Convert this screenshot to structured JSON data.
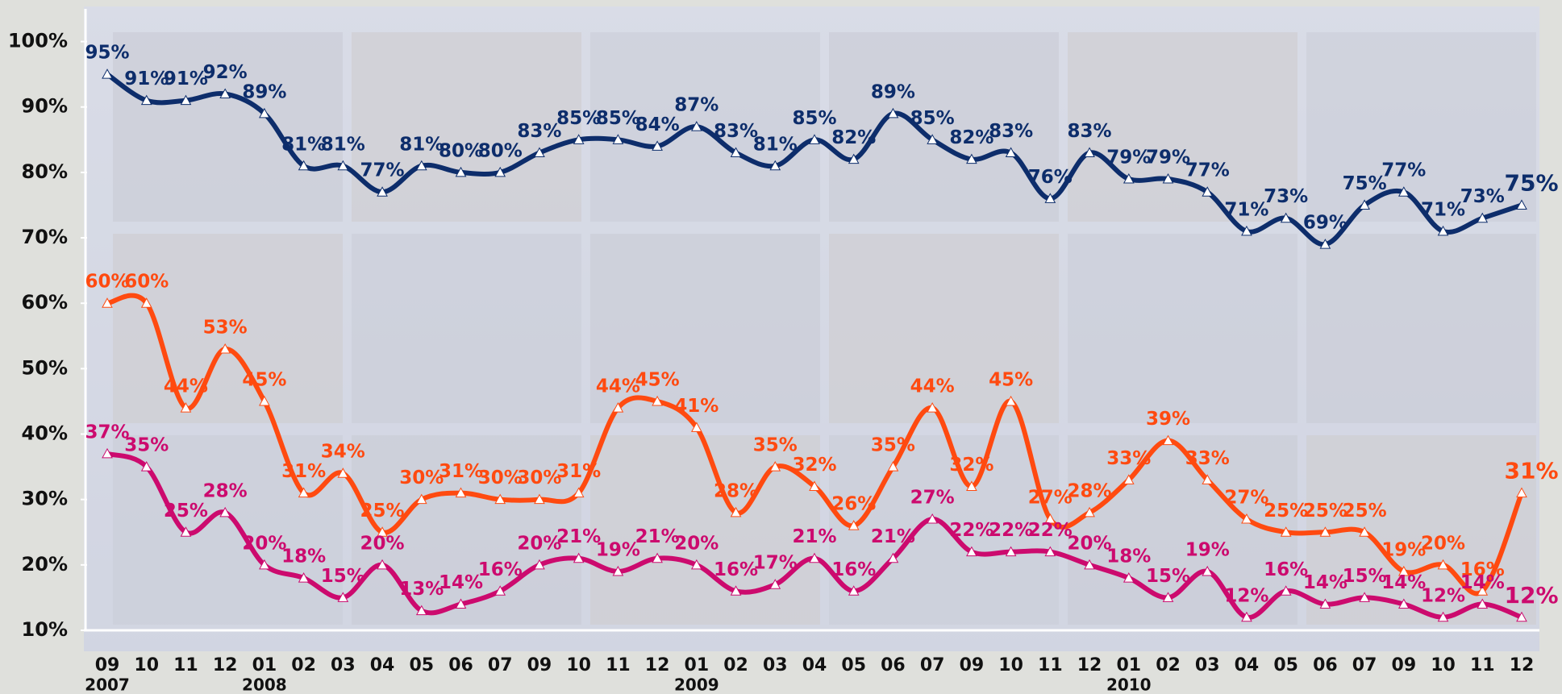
{
  "chart_data": {
    "type": "line",
    "categories": [
      "09",
      "10",
      "11",
      "12",
      "01",
      "02",
      "03",
      "04",
      "05",
      "06",
      "07",
      "09",
      "10",
      "11",
      "12",
      "01",
      "02",
      "03",
      "04",
      "05",
      "06",
      "07",
      "09",
      "10",
      "11",
      "12",
      "01",
      "02",
      "03",
      "04",
      "05",
      "06",
      "07",
      "09",
      "10",
      "11",
      "12"
    ],
    "years": [
      "2007",
      null,
      null,
      null,
      "2008",
      null,
      null,
      null,
      null,
      null,
      null,
      null,
      null,
      null,
      null,
      "2009",
      null,
      null,
      null,
      null,
      null,
      null,
      null,
      null,
      null,
      null,
      "2010",
      null,
      null,
      null,
      null,
      null,
      null,
      null,
      null,
      null,
      null
    ],
    "series": [
      {
        "color": "#0d2d6b",
        "values": [
          95,
          91,
          91,
          92,
          89,
          81,
          81,
          77,
          81,
          80,
          80,
          83,
          85,
          85,
          84,
          87,
          83,
          81,
          85,
          82,
          89,
          85,
          82,
          83,
          76,
          83,
          79,
          79,
          77,
          71,
          73,
          69,
          75,
          77,
          71,
          73,
          75
        ],
        "value_labels": [
          "95%",
          "91%",
          "91%",
          "92%",
          "89%",
          "81%",
          "81%",
          "77%",
          "81%",
          "80%",
          "80%",
          "83%",
          "85%",
          "85%",
          "84%",
          "87%",
          "83%",
          "81%",
          "85%",
          "82%",
          "89%",
          "85%",
          "82%",
          "83%",
          "76%",
          "83%",
          "79%",
          "79%",
          "77%",
          "71%",
          "73%",
          "69%",
          "75%",
          "77%",
          "71%",
          "73%",
          "75%"
        ]
      },
      {
        "color": "#ff4a10",
        "values": [
          60,
          60,
          44,
          53,
          45,
          31,
          34,
          25,
          30,
          31,
          30,
          30,
          31,
          44,
          45,
          41,
          28,
          35,
          32,
          26,
          35,
          44,
          32,
          45,
          27,
          28,
          33,
          39,
          33,
          27,
          25,
          25,
          25,
          19,
          20,
          16,
          31
        ],
        "value_labels": [
          "60%",
          "60%",
          "44%",
          "53%",
          "45%",
          "31%",
          "34%",
          "25%",
          "30%",
          "31%",
          "30%",
          "30%",
          "31%",
          "44%",
          "45%",
          "41%",
          "28%",
          "35%",
          "32%",
          "26%",
          "35%",
          "44%",
          "32%",
          "45%",
          "27%",
          "28%",
          "33%",
          "39%",
          "33%",
          "27%",
          "25%",
          "25%",
          "25%",
          "19%",
          "20%",
          "16%",
          "31%"
        ]
      },
      {
        "color": "#cc0a6e",
        "values": [
          37,
          35,
          25,
          28,
          20,
          18,
          15,
          20,
          13,
          14,
          16,
          20,
          21,
          19,
          21,
          20,
          16,
          17,
          21,
          16,
          21,
          27,
          22,
          22,
          22,
          20,
          18,
          15,
          19,
          12,
          16,
          14,
          15,
          14,
          12,
          14,
          12
        ],
        "value_labels": [
          "37%",
          "35%",
          "25%",
          "28%",
          "20%",
          "18%",
          "15%",
          "20%",
          "13%",
          "14%",
          "16%",
          "20%",
          "21%",
          "19%",
          "21%",
          "20%",
          "16%",
          "17%",
          "21%",
          "16%",
          "21%",
          "27%",
          "22%",
          "22%",
          "22%",
          "20%",
          "18%",
          "15%",
          "19%",
          "12%",
          "16%",
          "14%",
          "15%",
          "14%",
          "12%",
          "14%",
          "12%"
        ]
      }
    ],
    "ylim": [
      10,
      105
    ],
    "yticks": [
      {
        "value": 10,
        "label": "10%"
      },
      {
        "value": 20,
        "label": "20%"
      },
      {
        "value": 30,
        "label": "30%"
      },
      {
        "value": 40,
        "label": "40%"
      },
      {
        "value": 50,
        "label": "50%"
      },
      {
        "value": 60,
        "label": "60%"
      },
      {
        "value": 70,
        "label": "70%"
      },
      {
        "value": 80,
        "label": "80%"
      },
      {
        "value": 90,
        "label": "90%"
      },
      {
        "value": 100,
        "label": "100%"
      }
    ]
  }
}
